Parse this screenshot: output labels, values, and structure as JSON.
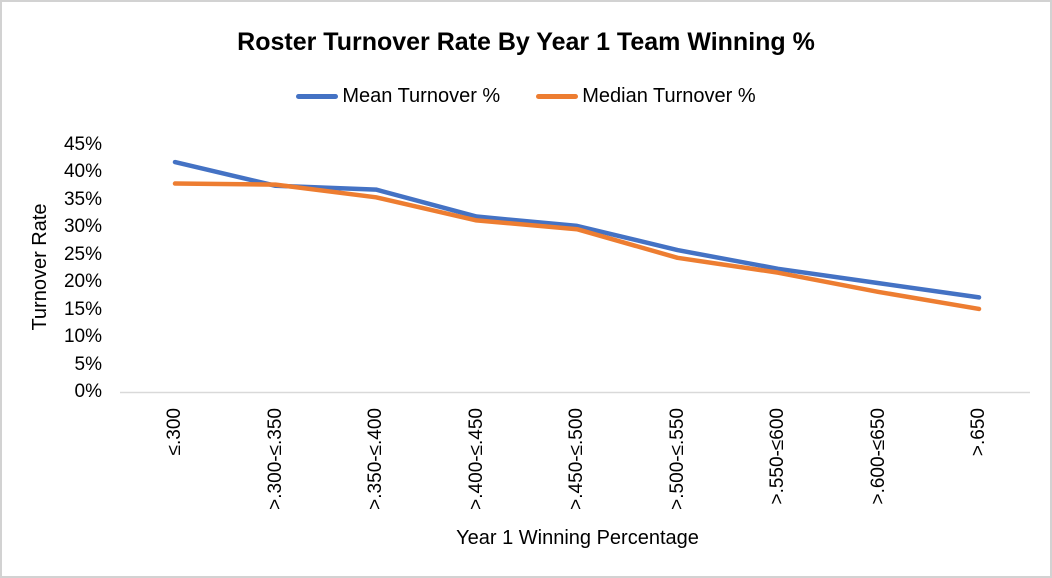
{
  "chart_data": {
    "type": "line",
    "title": "Roster Turnover Rate By Year 1 Team Winning %",
    "xlabel": "Year 1 Winning Percentage",
    "ylabel": "Turnover Rate",
    "categories": [
      "≤.300",
      ">.300-≤.350",
      ">.350-≤.400",
      ">.400-≤.450",
      ">.450-≤.500",
      ">.500-≤.550",
      ">.550-≤600",
      ">.600-≤650",
      ">.650"
    ],
    "series": [
      {
        "name": "Mean Turnover %",
        "color": "#4472C4",
        "values": [
          41.8,
          37.5,
          36.8,
          31.9,
          30.2,
          25.8,
          22.4,
          19.8,
          17.2
        ]
      },
      {
        "name": "Median Turnover %",
        "color": "#ED7D31",
        "values": [
          37.9,
          37.7,
          35.4,
          31.2,
          29.6,
          24.4,
          21.7,
          18.2,
          15.1
        ]
      }
    ],
    "ylim": [
      0,
      45
    ],
    "ytick_step": 5,
    "ytick_labels": [
      "0%",
      "5%",
      "10%",
      "15%",
      "20%",
      "25%",
      "30%",
      "35%",
      "40%",
      "45%"
    ],
    "grid": false,
    "legend_position": "top",
    "axis_color": "#D9D9D9",
    "text_color": "#000000"
  }
}
